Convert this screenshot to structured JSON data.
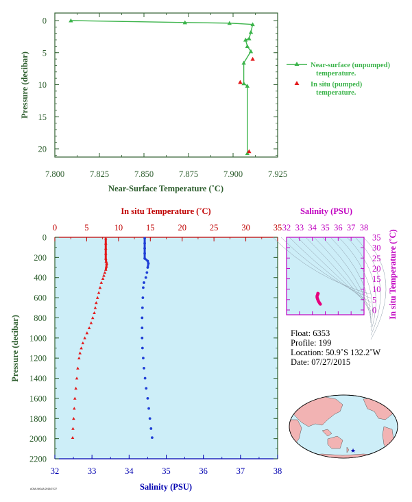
{
  "top_chart": {
    "xlabel": "Near-Surface Temperature (˚C)",
    "ylabel": "Pressure (decibar)",
    "xlim": [
      7.8,
      7.925
    ],
    "ylim": [
      0,
      22
    ],
    "x_ticks": [
      "7.800",
      "7.825",
      "7.850",
      "7.875",
      "7.900",
      "7.925"
    ],
    "y_ticks": [
      "0",
      "5",
      "10",
      "15",
      "20"
    ],
    "legend": [
      {
        "label_line1": "Near-surface (unpumped)",
        "label_line2": "temperature.",
        "color": "#3cb44b"
      },
      {
        "label_line1": "In situ (pumped)",
        "label_line2": "temperature.",
        "color": "#e31a1c"
      }
    ]
  },
  "main_chart": {
    "top_xlabel": "In situ Temperature (˚C)",
    "bottom_xlabel": "Salinity (PSU)",
    "ylabel": "Pressure (decibar)",
    "top_ticks": [
      "0",
      "5",
      "10",
      "15",
      "20",
      "25",
      "30",
      "35"
    ],
    "bottom_ticks": [
      "32",
      "33",
      "34",
      "35",
      "36",
      "37",
      "38"
    ],
    "y_ticks": [
      "0",
      "200",
      "400",
      "600",
      "800",
      "1000",
      "1200",
      "1400",
      "1600",
      "1800",
      "2000",
      "2200"
    ],
    "footer_note": "AOML/NOAA 2015/07/27"
  },
  "ts_chart": {
    "title": "Salinity (PSU)",
    "ylabel": "In situ Temperature (˚C)",
    "x_ticks": [
      "32",
      "33",
      "34",
      "35",
      "36",
      "37",
      "38"
    ],
    "y_ticks": [
      "0",
      "5",
      "10",
      "15",
      "20",
      "25",
      "30",
      "35"
    ]
  },
  "info": {
    "float": "Float:  6353",
    "profile": "Profile:  199",
    "location": "Location:  50.9˚S  132.2˚W",
    "date": "Date:  07/27/2015"
  },
  "colors": {
    "axis_green": "#2e5e2e",
    "near_surface": "#3cb44b",
    "insitu": "#e31a1c",
    "temp_profile": "#e31a1c",
    "salinity_profile": "#1f3fd6",
    "ts_curve": "#e6007e",
    "magenta_axis": "#c000c0",
    "blue_axis": "#0000b0",
    "panel_bg": "#cdeef8"
  },
  "chart_data": [
    {
      "type": "line",
      "title": "",
      "xlabel": "Near-Surface Temperature (˚C)",
      "ylabel": "Pressure (decibar)",
      "xlim": [
        7.8,
        7.925
      ],
      "ylim": [
        22,
        0
      ],
      "series": [
        {
          "name": "Near-surface (unpumped) temperature.",
          "marker": "triangle",
          "points": [
            [
              7.809,
              0.0
            ],
            [
              7.873,
              0.3
            ],
            [
              7.898,
              0.4
            ],
            [
              7.911,
              0.6
            ],
            [
              7.91,
              1.8
            ],
            [
              7.909,
              2.8
            ],
            [
              7.907,
              3.0
            ],
            [
              7.908,
              4.0
            ],
            [
              7.91,
              4.8
            ],
            [
              7.906,
              6.6
            ],
            [
              7.906,
              9.8
            ],
            [
              7.908,
              10.2
            ],
            [
              7.908,
              20.7
            ]
          ]
        },
        {
          "name": "In situ (pumped) temperature.",
          "marker": "triangle",
          "points": [
            [
              7.911,
              6.0
            ],
            [
              7.904,
              9.6
            ],
            [
              7.909,
              20.4
            ]
          ]
        }
      ]
    },
    {
      "type": "line",
      "title": "",
      "xlabel": "In situ Temperature (˚C)",
      "ylabel": "Pressure (decibar)",
      "xlim": [
        0,
        35
      ],
      "ylim": [
        2200,
        0
      ],
      "series": [
        {
          "name": "",
          "points": [
            [
              8.0,
              10
            ],
            [
              8.0,
              60
            ],
            [
              8.0,
              110
            ],
            [
              8.0,
              160
            ],
            [
              8.0,
              210
            ],
            [
              8.05,
              240
            ],
            [
              8.15,
              260
            ],
            [
              8.1,
              290
            ],
            [
              8.0,
              320
            ],
            [
              7.85,
              350
            ],
            [
              7.7,
              380
            ],
            [
              7.55,
              410
            ],
            [
              7.3,
              450
            ],
            [
              7.1,
              500
            ],
            [
              6.9,
              550
            ],
            [
              6.7,
              600
            ],
            [
              6.5,
              650
            ],
            [
              6.35,
              700
            ],
            [
              6.2,
              750
            ],
            [
              5.95,
              800
            ],
            [
              5.7,
              850
            ],
            [
              5.4,
              900
            ],
            [
              5.05,
              950
            ],
            [
              4.7,
              1000
            ],
            [
              4.4,
              1050
            ],
            [
              4.15,
              1100
            ],
            [
              3.95,
              1150
            ],
            [
              3.8,
              1200
            ],
            [
              3.6,
              1300
            ],
            [
              3.45,
              1400
            ],
            [
              3.3,
              1500
            ],
            [
              3.15,
              1600
            ],
            [
              3.05,
              1700
            ],
            [
              2.95,
              1800
            ],
            [
              2.85,
              1900
            ],
            [
              2.8,
              1990
            ]
          ]
        }
      ]
    },
    {
      "type": "line",
      "title": "",
      "xlabel": "Salinity (PSU)",
      "ylabel": "Pressure (decibar)",
      "xlim": [
        32,
        38
      ],
      "ylim": [
        2200,
        0
      ],
      "series": [
        {
          "name": "",
          "points": [
            [
              34.42,
              10
            ],
            [
              34.42,
              60
            ],
            [
              34.42,
              110
            ],
            [
              34.42,
              160
            ],
            [
              34.42,
              210
            ],
            [
              34.5,
              235
            ],
            [
              34.52,
              260
            ],
            [
              34.5,
              300
            ],
            [
              34.48,
              350
            ],
            [
              34.45,
              400
            ],
            [
              34.4,
              450
            ],
            [
              34.38,
              500
            ],
            [
              34.37,
              600
            ],
            [
              34.36,
              700
            ],
            [
              34.35,
              800
            ],
            [
              34.35,
              900
            ],
            [
              34.35,
              1000
            ],
            [
              34.36,
              1100
            ],
            [
              34.38,
              1200
            ],
            [
              34.4,
              1300
            ],
            [
              34.43,
              1400
            ],
            [
              34.46,
              1500
            ],
            [
              34.5,
              1600
            ],
            [
              34.53,
              1700
            ],
            [
              34.56,
              1800
            ],
            [
              34.59,
              1900
            ],
            [
              34.62,
              1990
            ]
          ]
        }
      ]
    },
    {
      "type": "line",
      "title": "Salinity (PSU)",
      "xlabel": "Salinity (PSU)",
      "ylabel": "In situ Temperature (˚C)",
      "xlim": [
        32,
        38
      ],
      "ylim": [
        0,
        35
      ],
      "series": [
        {
          "name": "",
          "points": [
            [
              34.62,
              2.8
            ],
            [
              34.58,
              3.1
            ],
            [
              34.53,
              3.6
            ],
            [
              34.47,
              4.2
            ],
            [
              34.42,
              5.0
            ],
            [
              34.38,
              5.7
            ],
            [
              34.36,
              6.3
            ],
            [
              34.37,
              6.9
            ],
            [
              34.42,
              7.5
            ],
            [
              34.45,
              7.9
            ],
            [
              34.42,
              8.0
            ]
          ]
        }
      ]
    }
  ]
}
